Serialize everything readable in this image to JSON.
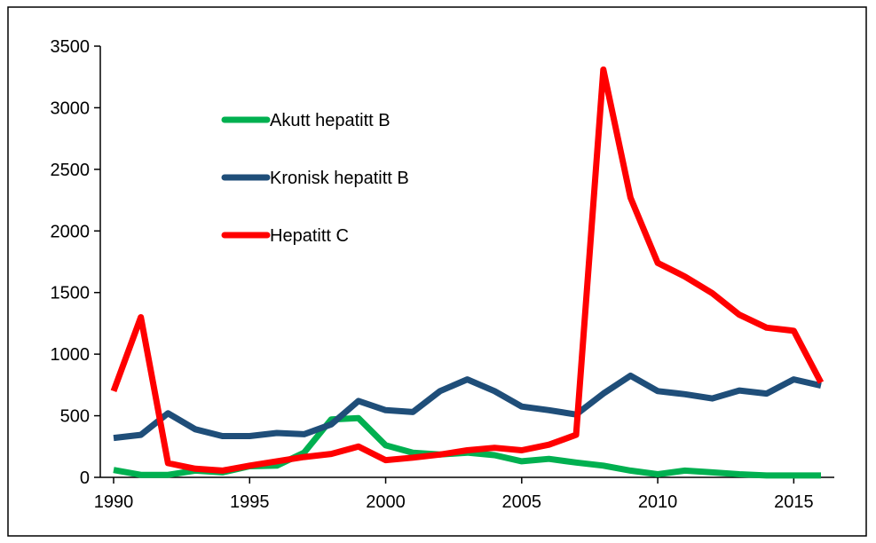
{
  "chart_data": {
    "type": "line",
    "title": "",
    "xlabel": "",
    "ylabel": "",
    "xlim": [
      1990,
      2016
    ],
    "ylim": [
      0,
      3500
    ],
    "x_ticks": [
      1990,
      1995,
      2000,
      2005,
      2010,
      2015
    ],
    "y_ticks": [
      0,
      500,
      1000,
      1500,
      2000,
      2500,
      3000,
      3500
    ],
    "x_tick_labels": [
      "1990",
      "1995",
      "2000",
      "2005",
      "2010",
      "2015"
    ],
    "y_tick_labels": [
      "0",
      "500",
      "1000",
      "1500",
      "2000",
      "2500",
      "3000",
      "3500"
    ],
    "grid": false,
    "legend_position": "top-left",
    "x": [
      1990,
      1991,
      1992,
      1993,
      1994,
      1995,
      1996,
      1997,
      1998,
      1999,
      2000,
      2001,
      2002,
      2003,
      2004,
      2005,
      2006,
      2007,
      2008,
      2009,
      2010,
      2011,
      2012,
      2013,
      2014,
      2015,
      2016
    ],
    "series": [
      {
        "name": "Akutt hepatitt B",
        "color": "#00b050",
        "values": [
          60,
          20,
          20,
          55,
          40,
          90,
          95,
          200,
          470,
          480,
          260,
          200,
          185,
          200,
          180,
          130,
          150,
          120,
          95,
          55,
          25,
          55,
          40,
          25,
          15,
          15,
          15
        ]
      },
      {
        "name": "Kronisk hepatitt B",
        "color": "#1f4e79",
        "values": [
          320,
          345,
          520,
          390,
          335,
          335,
          360,
          350,
          430,
          620,
          545,
          530,
          700,
          795,
          700,
          575,
          545,
          510,
          680,
          825,
          700,
          675,
          640,
          705,
          680,
          795,
          745
        ]
      },
      {
        "name": "Hepatitt C",
        "color": "#ff0000",
        "values": [
          700,
          1300,
          115,
          70,
          55,
          95,
          130,
          165,
          190,
          250,
          140,
          160,
          185,
          220,
          240,
          220,
          265,
          345,
          3310,
          2270,
          1740,
          1630,
          1495,
          1320,
          1215,
          1190,
          770
        ]
      }
    ]
  }
}
